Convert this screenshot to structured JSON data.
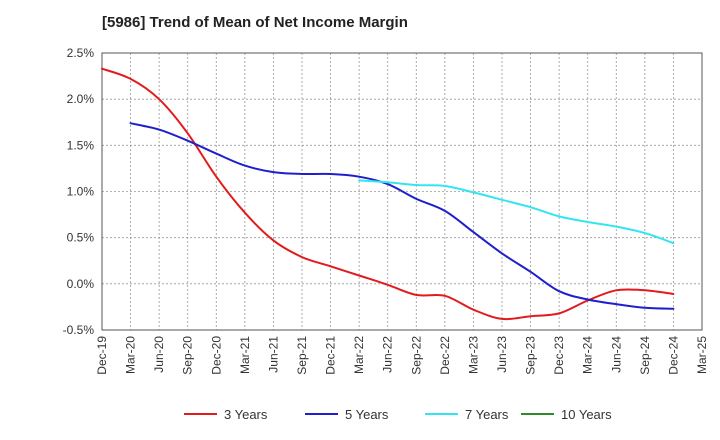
{
  "chart_data": {
    "type": "line",
    "title": "[5986]  Trend of Mean of Net Income Margin",
    "xlabel": "",
    "ylabel": "",
    "x_ticks": [
      "Dec-19",
      "Mar-20",
      "Jun-20",
      "Sep-20",
      "Dec-20",
      "Mar-21",
      "Jun-21",
      "Sep-21",
      "Dec-21",
      "Mar-22",
      "Jun-22",
      "Sep-22",
      "Dec-22",
      "Mar-23",
      "Jun-23",
      "Sep-23",
      "Dec-23",
      "Mar-24",
      "Jun-24",
      "Sep-24",
      "Dec-24",
      "Mar-25"
    ],
    "y_ticks": [
      "2.5%",
      "2.0%",
      "1.5%",
      "1.0%",
      "0.5%",
      "0.0%",
      "-0.5%"
    ],
    "ylim": [
      -0.5,
      2.5
    ],
    "grid": true,
    "legend_position": "bottom",
    "series": [
      {
        "name": "3 Years",
        "color": "#e31a1c",
        "x": [
          "Dec-19",
          "Mar-20",
          "Jun-20",
          "Sep-20",
          "Dec-20",
          "Mar-21",
          "Jun-21",
          "Sep-21",
          "Dec-21",
          "Mar-22",
          "Jun-22",
          "Sep-22",
          "Dec-22",
          "Mar-23",
          "Jun-23",
          "Sep-23",
          "Dec-23",
          "Mar-24",
          "Jun-24",
          "Sep-24",
          "Dec-24"
        ],
        "values": [
          2.33,
          2.22,
          2.0,
          1.63,
          1.16,
          0.77,
          0.47,
          0.29,
          0.19,
          0.09,
          -0.01,
          -0.12,
          -0.13,
          -0.28,
          -0.38,
          -0.35,
          -0.32,
          -0.18,
          -0.07,
          -0.07,
          -0.11
        ]
      },
      {
        "name": "5 Years",
        "color": "#1f1fcc",
        "x": [
          "Mar-20",
          "Jun-20",
          "Sep-20",
          "Dec-20",
          "Mar-21",
          "Jun-21",
          "Sep-21",
          "Dec-21",
          "Mar-22",
          "Jun-22",
          "Sep-22",
          "Dec-22",
          "Mar-23",
          "Jun-23",
          "Sep-23",
          "Dec-23",
          "Mar-24",
          "Jun-24",
          "Sep-24",
          "Dec-24"
        ],
        "values": [
          1.74,
          1.67,
          1.55,
          1.41,
          1.28,
          1.21,
          1.19,
          1.19,
          1.16,
          1.08,
          0.92,
          0.79,
          0.56,
          0.33,
          0.13,
          -0.08,
          -0.17,
          -0.22,
          -0.26,
          -0.27
        ]
      },
      {
        "name": "7 Years",
        "color": "#33e5f0",
        "x": [
          "Mar-22",
          "Jun-22",
          "Sep-22",
          "Dec-22",
          "Mar-23",
          "Jun-23",
          "Sep-23",
          "Dec-23",
          "Mar-24",
          "Jun-24",
          "Sep-24",
          "Dec-24"
        ],
        "values": [
          1.12,
          1.1,
          1.07,
          1.06,
          0.99,
          0.91,
          0.83,
          0.73,
          0.67,
          0.62,
          0.55,
          0.44
        ]
      },
      {
        "name": "10 Years",
        "color": "#2e8b2e",
        "x": [],
        "values": []
      }
    ]
  }
}
